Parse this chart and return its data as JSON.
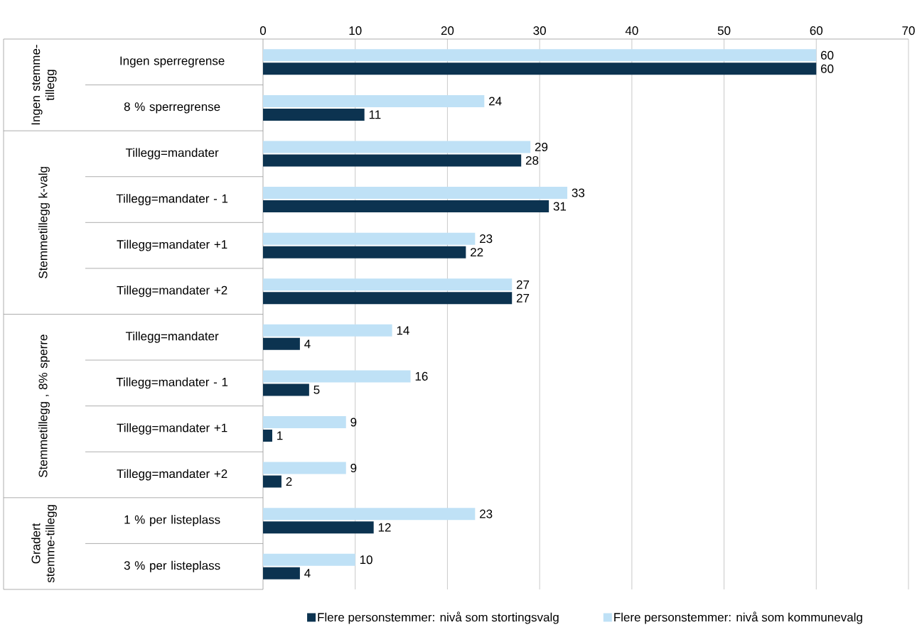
{
  "chart_data": {
    "type": "bar",
    "orientation": "horizontal",
    "categories": [
      "Ingen sperregrense",
      "8 % sperregrense",
      "Tillegg=mandater",
      "Tillegg=mandater - 1",
      "Tillegg=mandater +1",
      "Tillegg=mandater +2",
      "Tillegg=mandater",
      "Tillegg=mandater - 1",
      "Tillegg=mandater +1",
      "Tillegg=mandater +2",
      "1 % per listeplass",
      "3 % per listeplass"
    ],
    "series": [
      {
        "name": "Flere personstemmer: nivå som stortingsvalg",
        "color": "#0c3350",
        "values": [
          60,
          11,
          28,
          31,
          22,
          27,
          4,
          5,
          1,
          2,
          12,
          4
        ]
      },
      {
        "name": "Flere personstemmer: nivå som kommunevalg",
        "color": "#bfe1f6",
        "values": [
          60,
          24,
          29,
          33,
          23,
          27,
          14,
          16,
          9,
          9,
          23,
          10
        ]
      }
    ],
    "xlim": [
      0,
      70
    ],
    "xticks": [
      0,
      10,
      20,
      30,
      40,
      50,
      60,
      70
    ],
    "grid": "x",
    "legend": "bottom",
    "data_labels": true,
    "annotations": [
      "Ingen stemme-tillegg",
      "Stemmetillegg  k-valg",
      "Stemmetillegg , 8% sperre",
      "Gradert stemme-tillegg"
    ]
  }
}
